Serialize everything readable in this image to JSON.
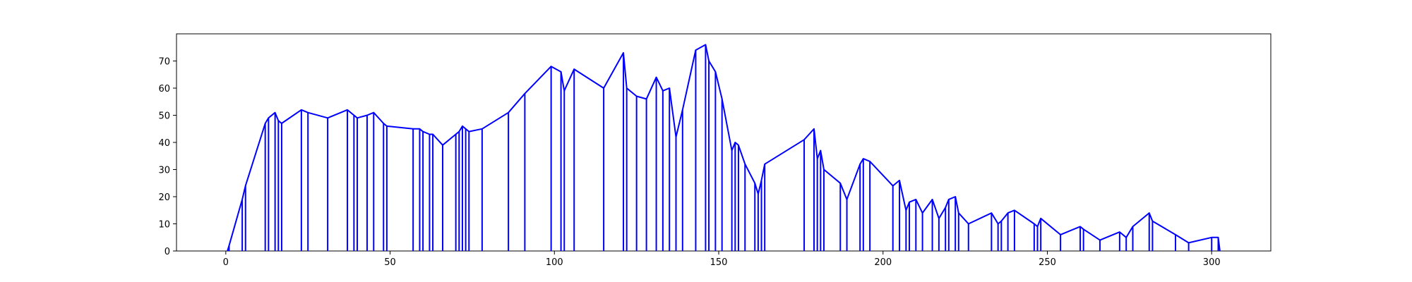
{
  "chart_data": {
    "type": "line",
    "title": "",
    "xlabel": "",
    "ylabel": "",
    "xlim": [
      -15,
      318
    ],
    "ylim": [
      0,
      80
    ],
    "x_ticks": [
      0,
      50,
      100,
      150,
      200,
      250,
      300
    ],
    "y_ticks": [
      0,
      10,
      20,
      30,
      40,
      50,
      60,
      70
    ],
    "grid": false,
    "legend": "none",
    "series": [
      {
        "color": "#0000ff",
        "style": "stem-envelope",
        "points": [
          [
            0.5,
            0
          ],
          [
            1,
            2
          ],
          [
            5,
            19
          ],
          [
            6,
            24
          ],
          [
            12,
            47
          ],
          [
            13,
            49
          ],
          [
            15,
            51
          ],
          [
            16,
            48
          ],
          [
            17,
            47
          ],
          [
            23,
            52
          ],
          [
            25,
            51
          ],
          [
            31,
            49
          ],
          [
            37,
            52
          ],
          [
            39,
            50
          ],
          [
            40,
            49
          ],
          [
            43,
            50
          ],
          [
            45,
            51
          ],
          [
            48,
            47
          ],
          [
            49,
            46
          ],
          [
            57,
            45
          ],
          [
            59,
            45
          ],
          [
            60,
            44
          ],
          [
            62,
            43
          ],
          [
            63,
            43
          ],
          [
            66,
            39
          ],
          [
            70,
            43
          ],
          [
            71,
            44
          ],
          [
            72,
            46
          ],
          [
            73,
            45
          ],
          [
            74,
            44
          ],
          [
            78,
            45
          ],
          [
            86,
            51
          ],
          [
            91,
            58
          ],
          [
            99,
            68
          ],
          [
            102,
            66
          ],
          [
            103,
            59
          ],
          [
            106,
            67
          ],
          [
            115,
            60
          ],
          [
            121,
            73
          ],
          [
            122,
            60
          ],
          [
            125,
            57
          ],
          [
            128,
            56
          ],
          [
            131,
            64
          ],
          [
            133,
            59
          ],
          [
            135,
            60
          ],
          [
            137,
            42
          ],
          [
            139,
            52
          ],
          [
            143,
            74
          ],
          [
            146,
            76
          ],
          [
            147,
            70
          ],
          [
            149,
            66
          ],
          [
            151,
            56
          ],
          [
            154,
            37
          ],
          [
            155,
            40
          ],
          [
            156,
            39
          ],
          [
            158,
            32
          ],
          [
            161,
            25
          ],
          [
            162,
            21
          ],
          [
            163,
            26
          ],
          [
            164,
            32
          ],
          [
            176,
            41
          ],
          [
            179,
            45
          ],
          [
            180,
            34
          ],
          [
            181,
            37
          ],
          [
            182,
            30
          ],
          [
            187,
            25
          ],
          [
            189,
            19
          ],
          [
            193,
            32
          ],
          [
            194,
            34
          ],
          [
            196,
            33
          ],
          [
            203,
            24
          ],
          [
            205,
            26
          ],
          [
            207,
            15
          ],
          [
            208,
            18
          ],
          [
            210,
            19
          ],
          [
            212,
            14
          ],
          [
            215,
            19
          ],
          [
            217,
            12
          ],
          [
            219,
            16
          ],
          [
            220,
            19
          ],
          [
            222,
            20
          ],
          [
            223,
            14
          ],
          [
            226,
            10
          ],
          [
            233,
            14
          ],
          [
            235,
            10
          ],
          [
            236,
            11
          ],
          [
            238,
            14
          ],
          [
            240,
            15
          ],
          [
            246,
            10
          ],
          [
            247,
            9
          ],
          [
            248,
            12
          ],
          [
            254,
            6
          ],
          [
            260,
            9
          ],
          [
            261,
            8
          ],
          [
            266,
            4
          ],
          [
            272,
            7
          ],
          [
            274,
            5
          ],
          [
            276,
            9
          ],
          [
            281,
            14
          ],
          [
            282,
            11
          ],
          [
            289,
            6
          ],
          [
            293,
            3
          ],
          [
            300,
            5
          ],
          [
            302,
            5
          ],
          [
            302.5,
            0
          ]
        ]
      }
    ]
  }
}
